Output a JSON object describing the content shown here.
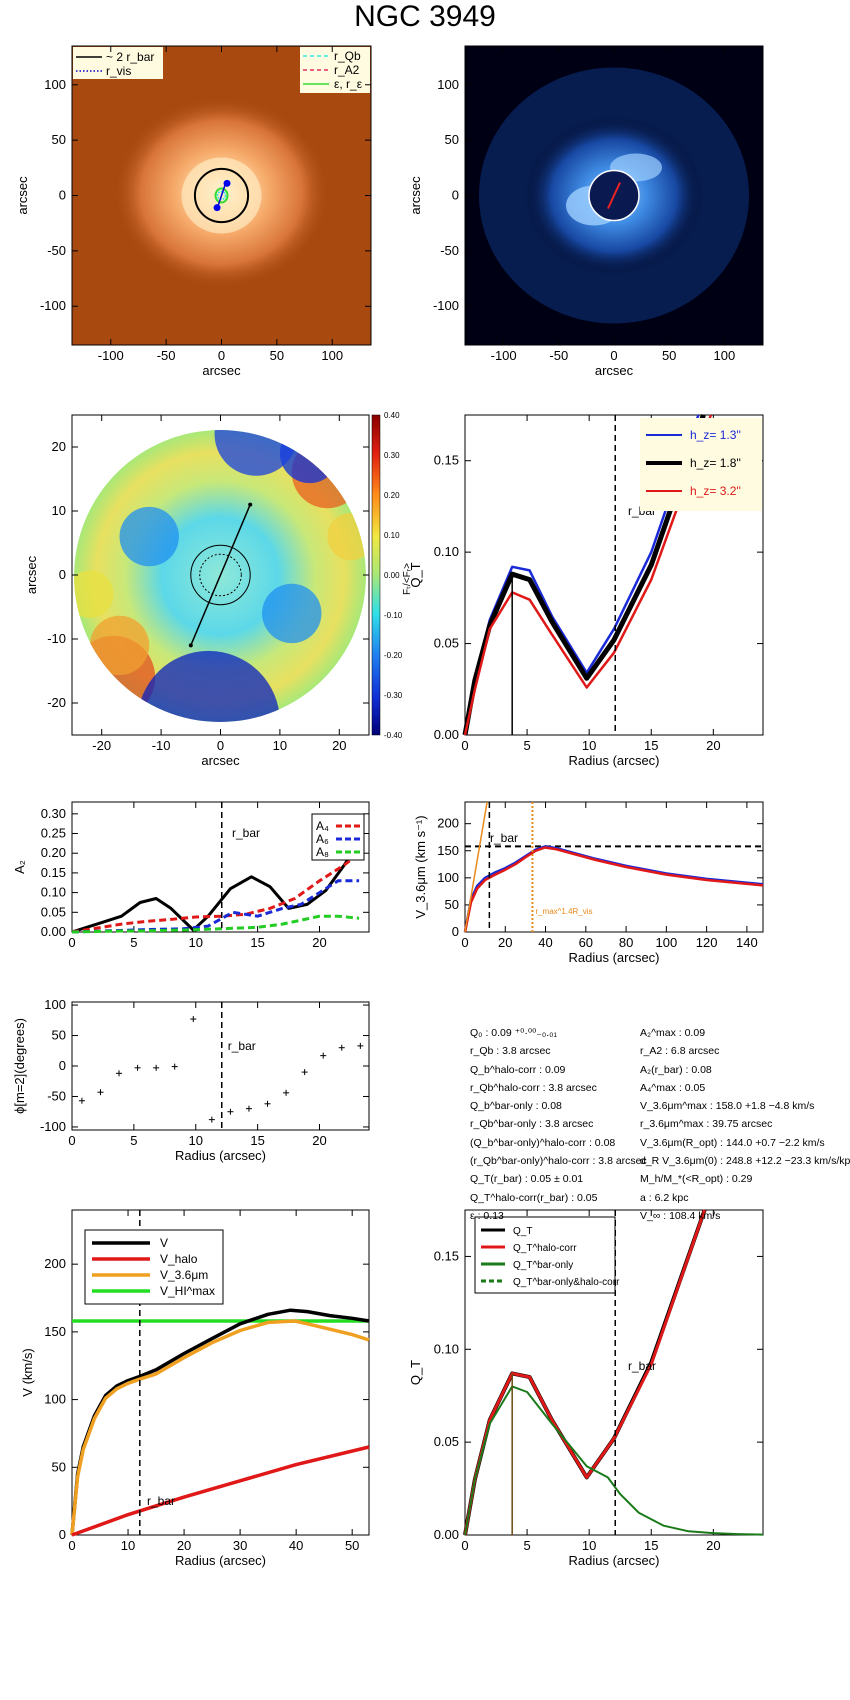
{
  "page": {
    "title": "NGC 3949",
    "stats_left": [
      "Q₀ :  0.09 ⁺⁰·⁰⁰₋₀.₀₁",
      "r_Qb :   3.8  arcsec",
      "Q_b^halo-corr :  0.09",
      "r_Qb^halo-corr :  3.8 arcsec",
      "Q_b^bar-only :  0.08",
      "r_Qb^bar-only :  3.8 arcsec",
      "(Q_b^bar-only)^halo-corr :  0.08",
      "(r_Qb^bar-only)^halo-corr :   3.8 arcsec",
      "Q_T(r_bar) :  0.05 ± 0.01",
      "Q_T^halo-corr(r_bar) :  0.05",
      "ε :  0.13"
    ],
    "stats_right": [
      "A₂^max :  0.09",
      "r_A2 :  6.8 arcsec",
      "A₂(r_bar) :  0.08",
      "A₄^max :  0.05",
      "V_3.6μm^max :  158.0 +1.8 −4.8 km/s",
      "r_3.6μm^max :  39.75 arcsec",
      "V_3.6μm(R_opt) :  144.0 +0.7 −2.2 km/s",
      "d_R V_3.6μm(0) :  248.8 +12.2 −23.3 km/s/kpc",
      "M_h/M_*(<R_opt) :  0.29",
      "a :  6.2 kpc",
      "V_∞ :  108.4 km/s"
    ]
  },
  "chart_data": [
    {
      "id": "panel1",
      "type": "image",
      "xlabel": "arcsec",
      "ylabel": "arcsec",
      "xlim": [
        -135,
        135
      ],
      "ylim": [
        -135,
        135
      ],
      "xticks": [
        -100,
        -50,
        0,
        50,
        100
      ],
      "yticks": [
        -100,
        -50,
        0,
        50,
        100
      ],
      "legend": [
        {
          "label": "~ 2 r_bar",
          "style": "solid",
          "color": "#000000"
        },
        {
          "label": "r_vis",
          "style": "dotted",
          "color": "#0000cc"
        },
        {
          "label": "r_Qb",
          "style": "dashed",
          "color": "#33e6e6"
        },
        {
          "label": "r_A2",
          "style": "dashed",
          "color": "#e0305a"
        },
        {
          "label": "ε, r_ε",
          "style": "solid",
          "color": "#33dd33"
        }
      ],
      "circle_radius": 24,
      "colors": {
        "background": "#a84a10",
        "galaxy": "#f0a060"
      }
    },
    {
      "id": "panel2",
      "type": "image",
      "xlabel": "arcsec",
      "ylabel": "arcsec",
      "xlim": [
        -135,
        135
      ],
      "ylim": [
        -135,
        135
      ],
      "xticks": [
        -100,
        -50,
        0,
        50,
        100
      ],
      "yticks": [
        -100,
        -50,
        0,
        50,
        100
      ],
      "colors": {
        "background": "#000015",
        "structure": "#3a8fff"
      }
    },
    {
      "id": "panel3",
      "type": "heatmap",
      "xlabel": "arcsec",
      "ylabel": "arcsec",
      "colorbar_label": "Fₜ/<Fᵣ>",
      "xlim": [
        -25,
        25
      ],
      "ylim": [
        -25,
        25
      ],
      "xticks": [
        -20,
        -10,
        0,
        10,
        20
      ],
      "yticks": [
        -20,
        -10,
        0,
        10,
        20
      ],
      "colorbar_ticks": [
        "0.40",
        "0.30",
        "0.20",
        "0.10",
        "0.00",
        "-0.10",
        "-0.20",
        "-0.30",
        "-0.40"
      ],
      "bar_line": [
        [
          -5,
          -11
        ],
        [
          5,
          11
        ]
      ]
    },
    {
      "id": "panel4",
      "type": "line",
      "xlabel": "Radius (arcsec)",
      "ylabel": "Q_T",
      "xlim": [
        0,
        24
      ],
      "ylim": [
        0,
        0.175
      ],
      "xticks": [
        0,
        5,
        10,
        15,
        20
      ],
      "yticks": [
        0.0,
        0.05,
        0.1,
        0.15
      ],
      "ytick_labels": [
        "0.00",
        "0.05",
        "0.10",
        "0.15"
      ],
      "vline_solid": 3.8,
      "vline_dashed": 12.1,
      "vline_label": "r_bar",
      "legend": [
        {
          "label": "h_z=  1.3''",
          "color": "#1a2ad8"
        },
        {
          "label": "h_z=  1.8''",
          "color": "#000000"
        },
        {
          "label": "h_z=  3.2''",
          "color": "#e01818"
        }
      ],
      "series": [
        {
          "name": "h_z=  1.3''",
          "color": "#1a2ad8",
          "width": 2.5,
          "x": [
            0,
            0.8,
            2,
            3.8,
            5.2,
            7,
            9.8,
            12,
            15,
            18.8
          ],
          "y": [
            0,
            0.03,
            0.063,
            0.092,
            0.09,
            0.065,
            0.034,
            0.058,
            0.1,
            0.175
          ]
        },
        {
          "name": "h_z=  1.8''",
          "color": "#000000",
          "width": 5,
          "x": [
            0,
            0.8,
            2,
            3.8,
            5.2,
            7,
            9.8,
            12,
            15,
            19.2
          ],
          "y": [
            0,
            0.03,
            0.06,
            0.088,
            0.085,
            0.062,
            0.031,
            0.052,
            0.093,
            0.175
          ]
        },
        {
          "name": "h_z=  3.2''",
          "color": "#e01818",
          "width": 2.5,
          "x": [
            0,
            0.8,
            2,
            3.8,
            5.2,
            7,
            9.8,
            12,
            15,
            19.8
          ],
          "y": [
            0,
            0.025,
            0.058,
            0.078,
            0.074,
            0.055,
            0.026,
            0.045,
            0.085,
            0.175
          ]
        }
      ]
    },
    {
      "id": "panel5",
      "type": "line",
      "xlabel": "",
      "ylabel": "A₂",
      "xlim": [
        0,
        24
      ],
      "ylim": [
        0,
        0.33
      ],
      "xticks": [
        0,
        5,
        10,
        15,
        20
      ],
      "yticks": [
        0,
        0.05,
        0.1,
        0.15,
        0.2,
        0.25,
        0.3
      ],
      "ytick_labels": [
        "0.00",
        "0.05",
        "0.10",
        "0.15",
        "0.20",
        "0.25",
        "0.30"
      ],
      "vline_dashed": 12.1,
      "vline_label": "r_bar",
      "legend": [
        {
          "label": "A₄",
          "color": "#e01818"
        },
        {
          "label": "A₆",
          "color": "#1a2ad8"
        },
        {
          "label": "A₈",
          "color": "#22cc22"
        }
      ],
      "series": [
        {
          "name": "A₂",
          "color": "#000000",
          "width": 3,
          "dash": "",
          "x": [
            0,
            1,
            2.5,
            4,
            5.5,
            6.8,
            8,
            9.8,
            11,
            12.8,
            14.5,
            16,
            17.5,
            19,
            20.5,
            22,
            23.2
          ],
          "y": [
            0,
            0.01,
            0.025,
            0.04,
            0.075,
            0.085,
            0.06,
            0.005,
            0.04,
            0.11,
            0.14,
            0.115,
            0.06,
            0.07,
            0.105,
            0.17,
            0.23
          ]
        },
        {
          "name": "A₄",
          "color": "#e01818",
          "width": 3,
          "dash": "7,4",
          "x": [
            0,
            2,
            4,
            6,
            8,
            10,
            12,
            14,
            16,
            18,
            20,
            22,
            23.2
          ],
          "y": [
            0,
            0.01,
            0.02,
            0.027,
            0.032,
            0.038,
            0.04,
            0.045,
            0.06,
            0.085,
            0.13,
            0.17,
            0.2
          ]
        },
        {
          "name": "A₆",
          "color": "#1a2ad8",
          "width": 3,
          "dash": "7,4",
          "x": [
            0,
            3,
            6,
            9,
            11,
            13,
            15,
            17,
            18.5,
            20,
            21.5,
            23.2
          ],
          "y": [
            0,
            0.003,
            0.006,
            0.008,
            0.015,
            0.05,
            0.04,
            0.06,
            0.07,
            0.1,
            0.13,
            0.13
          ]
        },
        {
          "name": "A₈",
          "color": "#22cc22",
          "width": 3,
          "dash": "7,4",
          "x": [
            0,
            3,
            6,
            9,
            12,
            15,
            17,
            18.5,
            20,
            21.5,
            23.2
          ],
          "y": [
            0,
            0.002,
            0.003,
            0.005,
            0.008,
            0.012,
            0.02,
            0.03,
            0.04,
            0.04,
            0.035
          ]
        }
      ]
    },
    {
      "id": "panel6",
      "type": "line",
      "xlabel": "Radius (arcsec)",
      "ylabel": "V_3.6μm (km s⁻¹)",
      "xlim": [
        0,
        148
      ],
      "ylim": [
        0,
        240
      ],
      "xticks": [
        0,
        20,
        40,
        60,
        80,
        100,
        120,
        140
      ],
      "yticks": [
        0,
        50,
        100,
        150,
        200
      ],
      "hline_dashed": 158,
      "vline_dashed": 12.1,
      "vline_label": "r_bar",
      "vline_dotted": 33.5,
      "vline_dotted_label": "r_max^1.4R_vis",
      "series": [
        {
          "name": "V_3.6μm",
          "color": "#1a2ad8",
          "width": 2.5,
          "x": [
            0,
            3,
            6,
            10,
            15,
            20,
            25,
            30,
            35,
            39.8,
            45,
            55,
            65,
            80,
            100,
            120,
            148
          ],
          "y": [
            0,
            60,
            85,
            100,
            110,
            118,
            128,
            140,
            152,
            158,
            155,
            145,
            135,
            122,
            108,
            98,
            88
          ]
        },
        {
          "name": "V_3.6μm (hz)",
          "color": "#e01818",
          "width": 2.5,
          "x": [
            0,
            3,
            6,
            10,
            15,
            20,
            25,
            30,
            35,
            39.8,
            45,
            55,
            65,
            80,
            100,
            120,
            148
          ],
          "y": [
            0,
            55,
            80,
            96,
            106,
            115,
            125,
            138,
            150,
            156,
            153,
            143,
            133,
            120,
            106,
            96,
            86
          ]
        },
        {
          "name": "slope",
          "color": "#e88a1a",
          "width": 1.5,
          "x": [
            0,
            11
          ],
          "y": [
            0,
            240
          ]
        }
      ]
    },
    {
      "id": "panel7",
      "type": "scatter",
      "xlabel": "Radius (arcsec)",
      "ylabel": "ϕ[m=2](degrees)",
      "xlim": [
        0,
        24
      ],
      "ylim": [
        -105,
        105
      ],
      "xticks": [
        0,
        5,
        10,
        15,
        20
      ],
      "yticks": [
        -100,
        -50,
        0,
        50,
        100
      ],
      "vline_dashed": 12.1,
      "vline_label": "r_bar",
      "points": {
        "x": [
          0.8,
          2.3,
          3.8,
          5.3,
          6.8,
          8.3,
          9.8,
          11.3,
          12.8,
          14.3,
          15.8,
          17.3,
          18.8,
          20.3,
          21.8,
          23.3
        ],
        "y": [
          -57,
          -43,
          -12,
          -3,
          -3,
          -1,
          77,
          -88,
          -75,
          -70,
          -62,
          -44,
          -10,
          17,
          30,
          33
        ]
      }
    },
    {
      "id": "panel8",
      "type": "line",
      "xlabel": "Radius (arcsec)",
      "ylabel": "V (km/s)",
      "xlim": [
        0,
        53
      ],
      "ylim": [
        0,
        240
      ],
      "xticks": [
        0,
        10,
        20,
        30,
        40,
        50
      ],
      "yticks": [
        0,
        50,
        100,
        150,
        200
      ],
      "vline_dashed": 12.1,
      "vline_label": "r_bar",
      "legend": [
        {
          "label": "V",
          "color": "#000000"
        },
        {
          "label": "V_halo",
          "color": "#e01818"
        },
        {
          "label": "V_3.6μm",
          "color": "#f0a020"
        },
        {
          "label": "V_HI^max",
          "color": "#22dd22"
        }
      ],
      "series": [
        {
          "name": "V_HI^max",
          "color": "#22dd22",
          "width": 3.5,
          "x": [
            0,
            53
          ],
          "y": [
            158,
            158
          ]
        },
        {
          "name": "V",
          "color": "#000000",
          "width": 3.5,
          "x": [
            0,
            1,
            2,
            4,
            6,
            8,
            10,
            12,
            15,
            20,
            25,
            30,
            35,
            39,
            42,
            46,
            50,
            53
          ],
          "y": [
            0,
            45,
            65,
            88,
            103,
            110,
            114,
            117,
            122,
            134,
            145,
            156,
            163,
            166,
            165,
            162,
            160,
            158
          ]
        },
        {
          "name": "V_3.6μm",
          "color": "#f0a020",
          "width": 3.5,
          "x": [
            0,
            1,
            2,
            4,
            6,
            8,
            10,
            12,
            15,
            20,
            25,
            30,
            35,
            39.8,
            42,
            46,
            50,
            53
          ],
          "y": [
            0,
            43,
            63,
            86,
            101,
            108,
            112,
            115,
            119,
            131,
            142,
            151,
            157,
            158,
            156,
            152,
            148,
            144
          ]
        },
        {
          "name": "V_halo",
          "color": "#e01818",
          "width": 3.5,
          "x": [
            0,
            10,
            20,
            30,
            40,
            53
          ],
          "y": [
            0,
            15,
            28,
            40,
            52,
            65
          ]
        }
      ]
    },
    {
      "id": "panel9",
      "type": "line",
      "xlabel": "Radius (arcsec)",
      "ylabel": "Q_T",
      "xlim": [
        0,
        24
      ],
      "ylim": [
        0,
        0.175
      ],
      "xticks": [
        0,
        5,
        10,
        15,
        20
      ],
      "yticks": [
        0.0,
        0.05,
        0.1,
        0.15
      ],
      "ytick_labels": [
        "0.00",
        "0.05",
        "0.10",
        "0.15"
      ],
      "vline_solid": 3.8,
      "vline_dashed": 12.1,
      "vline_label": "r_bar",
      "legend": [
        {
          "label": "Q_T",
          "color": "#000000",
          "dash": ""
        },
        {
          "label": "Q_T^halo-corr",
          "color": "#e01818",
          "dash": ""
        },
        {
          "label": "Q_T^bar-only",
          "color": "#1a7a1a",
          "dash": ""
        },
        {
          "label": "Q_T^bar-only&halo-corr",
          "color": "#1a7a1a",
          "dash": "5,3"
        }
      ],
      "series": [
        {
          "name": "Q_T",
          "color": "#000000",
          "width": 4,
          "x": [
            0,
            0.8,
            2,
            3.8,
            5.2,
            7,
            9.8,
            12,
            15,
            19.3
          ],
          "y": [
            0,
            0.03,
            0.062,
            0.087,
            0.085,
            0.062,
            0.031,
            0.052,
            0.093,
            0.175
          ]
        },
        {
          "name": "Q_T^halo-corr",
          "color": "#e01818",
          "width": 3,
          "x": [
            0,
            0.8,
            2,
            3.8,
            5.2,
            7,
            9.8,
            12,
            15,
            19.3
          ],
          "y": [
            0,
            0.03,
            0.062,
            0.087,
            0.085,
            0.062,
            0.031,
            0.052,
            0.092,
            0.175
          ]
        },
        {
          "name": "Q_T^bar-only",
          "color": "#1a7a1a",
          "width": 2,
          "x": [
            0,
            0.8,
            2,
            3.8,
            5,
            7,
            9.8,
            11.5,
            12.5,
            14,
            16,
            18,
            20,
            22,
            24
          ],
          "y": [
            0,
            0.03,
            0.06,
            0.08,
            0.077,
            0.06,
            0.037,
            0.031,
            0.022,
            0.012,
            0.005,
            0.002,
            0.001,
            0.0005,
            0.0002
          ]
        }
      ]
    }
  ]
}
